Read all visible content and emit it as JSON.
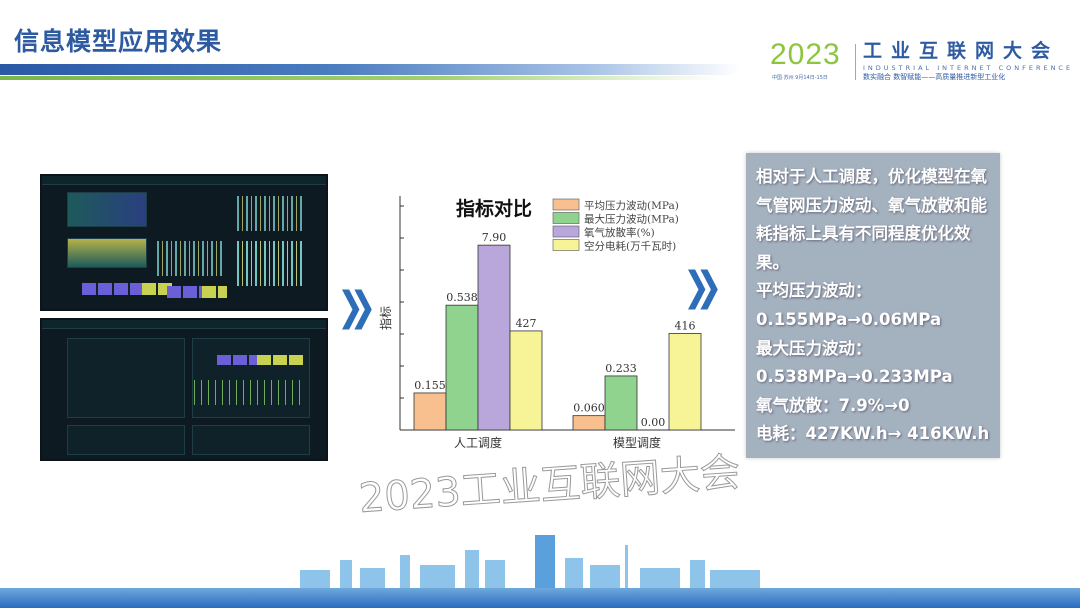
{
  "slide": {
    "title": "信息模型应用效果"
  },
  "logo": {
    "year": "2023",
    "location_date": "中国·苏州 9月14日-15日",
    "name_cn": "工业互联网大会",
    "name_en": "INDUSTRIAL INTERNET CONFERENCE",
    "slogan": "数实融合 数智赋能——高质量推进新型工业化"
  },
  "watermark": "2023工业互联网大会",
  "chart_data": {
    "type": "bar",
    "title": "指标对比",
    "xlabel": "",
    "ylabel": "指标",
    "categories": [
      "人工调度",
      "模型调度"
    ],
    "series": [
      {
        "name": "平均压力波动(MPa)",
        "values": [
          0.155,
          0.06
        ],
        "labels": [
          "0.155",
          "0.060"
        ],
        "color": "#f8c08f"
      },
      {
        "name": "最大压力波动(MPa)",
        "values": [
          0.538,
          0.233
        ],
        "labels": [
          "0.538",
          "0.233"
        ],
        "color": "#8fd38f"
      },
      {
        "name": "氧气放散率(%)",
        "values": [
          7.9,
          0.0
        ],
        "labels": [
          "7.90",
          "0.00"
        ],
        "color": "#b9a7dc"
      },
      {
        "name": "空分电耗(万千瓦时)",
        "values": [
          427,
          416
        ],
        "labels": [
          "427",
          "416"
        ],
        "color": "#f6f497"
      }
    ],
    "legend": "top-right",
    "grid": false
  },
  "summary": {
    "intro": "相对于人工调度，优化模型在氧气管网压力波动、氧气放散和能耗指标上具有不同程度优化效果。",
    "lines": [
      "平均压力波动：",
      "0.155MPa→0.06MPa",
      "最大压力波动：",
      "0.538MPa→0.233MPa",
      "氧气放散：7.9%→0",
      "电耗：427KW.h→ 416KW.h"
    ]
  }
}
